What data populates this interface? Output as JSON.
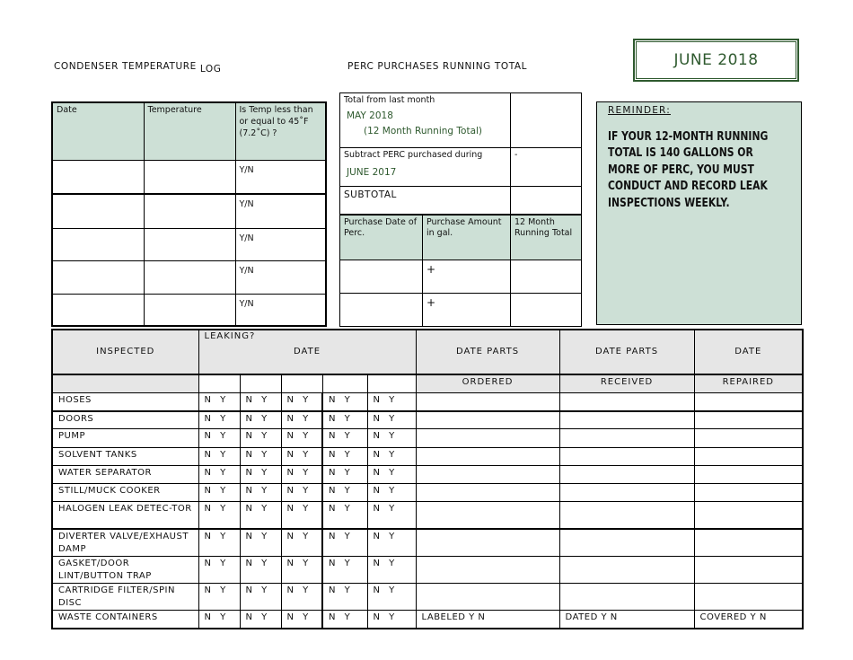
{
  "header": {
    "condenser_title": "CONDENSER TEMPERATURE",
    "condenser_title_suffix": "LOG",
    "perc_title": "PERC PURCHASES RUNNING TOTAL",
    "month_badge": "JUNE 2018"
  },
  "condenser_log": {
    "columns": [
      "Date",
      "Temperature",
      "Is Temp less than or equal to 45˚F (7.2˚C) ?"
    ],
    "rows": [
      {
        "date": "",
        "temperature": "",
        "check": "Y/N"
      },
      {
        "date": "",
        "temperature": "",
        "check": "Y/N"
      },
      {
        "date": "",
        "temperature": "",
        "check": "Y/N"
      },
      {
        "date": "",
        "temperature": "",
        "check": "Y/N"
      },
      {
        "date": "",
        "temperature": "",
        "check": "Y/N"
      }
    ]
  },
  "perc": {
    "total_label": "Total from last month",
    "total_month": "MAY 2018",
    "total_note": "(12 Month Running Total)",
    "subtract_label": "Subtract PERC purchased  during",
    "subtract_month": "JUNE 2017",
    "subtract_sign": "-",
    "subtotal_label": "SUBTOTAL",
    "columns": [
      "Purchase Date of Perc.",
      "Purchase Amount in gal.",
      "12 Month Running Total"
    ],
    "rows": [
      {
        "date": "",
        "amount": "+",
        "total": ""
      },
      {
        "date": "",
        "amount": "+",
        "total": ""
      }
    ]
  },
  "reminder": {
    "label": "REMINDER:",
    "message": "IF YOUR 12-MONTH RUNNING TOTAL IS 140 GALLONS OR MORE OF PERC, YOU MUST CONDUCT AND RECORD LEAK INSPECTIONS WEEKLY."
  },
  "inspection": {
    "headers": {
      "inspected": "INSPECTED",
      "leaking": "LEAKING?",
      "date": "DATE",
      "parts_ordered_top": "DATE PARTS",
      "parts_received_top": "DATE PARTS",
      "repaired_top": "DATE",
      "ordered": "ORDERED",
      "received": "RECEIVED",
      "repaired": "REPAIRED"
    },
    "yn_label": "N  Y",
    "rows": [
      {
        "item": "HOSES"
      },
      {
        "item": "DOORS"
      },
      {
        "item": "PUMP"
      },
      {
        "item": "SOLVENT TANKS"
      },
      {
        "item": "WATER SEPARATOR"
      },
      {
        "item": "STILL/MUCK COOKER"
      },
      {
        "item": "HALOGEN LEAK DETEC-TOR"
      },
      {
        "item": "DIVERTER VALVE/EXHAUST DAMP"
      },
      {
        "item": "GASKET/DOOR LINT/BUTTON TRAP"
      },
      {
        "item": "CARTRIDGE FILTER/SPIN DISC"
      },
      {
        "item": "WASTE CONTAINERS",
        "labeled": "LABELED  Y    N",
        "dated": "DATED Y    N",
        "covered": "COVERED Y    N"
      }
    ]
  },
  "colors": {
    "accent_green": "#2f5a2f",
    "fill_green": "#cde0d6",
    "header_gray": "#e6e6e6"
  }
}
